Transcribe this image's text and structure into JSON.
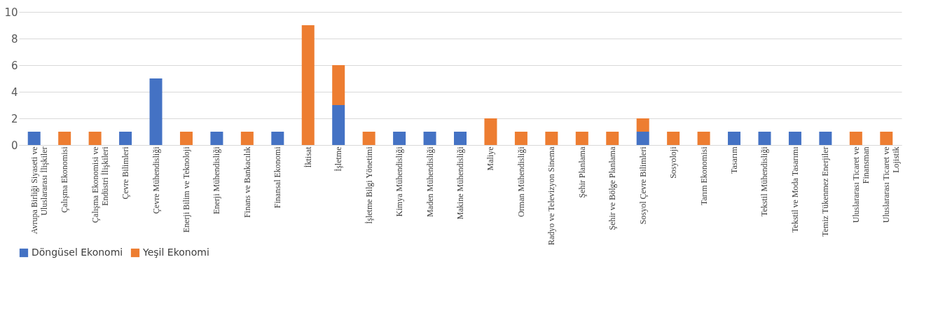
{
  "chart_data": {
    "type": "bar",
    "stacked": true,
    "categories": [
      "Avrupa Birliği Siyaseti ve Uluslararası İlişkiler",
      "Çalışma Ekonomisi",
      "Çalışma Ekonomisi ve Endüstri İlişkileri",
      "Çevre Bilimleri",
      "Çevre Mühendisliği",
      "Enerji Bilim ve Teknoloji",
      "Enerji Mühendisliği",
      "Finans ve Bankacılık",
      "Finansal Ekonomi",
      "İktisat",
      "İşletme",
      "İşletme Bilgi Yönetimi",
      "Kimya Mühendisliği",
      "Maden Mühendisliği",
      "Makine Mühendisliği",
      "Maliye",
      "Orman Mühendisliği",
      "Radyo ve Televizyon Sinema",
      "Şehir Planlama",
      "Şehir ve Bölge Planlama",
      "Sosyol Çevre Bilimleri",
      "Sosyoloji",
      "Tarım Ekonomisi",
      "Tasarım",
      "Tekstil Mühendisliği",
      "Tekstil ve Moda Tasarımı",
      "Temiz Tükenmez Enerjiler",
      "Uluslararası Ticaret ve Finansman",
      "Uluslararası Ticaret ve Lojistik"
    ],
    "series": [
      {
        "name": "Döngüsel Ekonomi",
        "color": "#4472c4",
        "values": [
          1,
          null,
          null,
          1,
          5,
          null,
          1,
          null,
          1,
          null,
          3,
          null,
          1,
          1,
          1,
          null,
          null,
          null,
          null,
          null,
          1,
          null,
          null,
          1,
          1,
          1,
          1,
          null,
          null
        ]
      },
      {
        "name": "Yeşil Ekonomi",
        "color": "#ed7d31",
        "values": [
          null,
          1,
          1,
          null,
          null,
          1,
          null,
          1,
          null,
          9,
          3,
          1,
          null,
          null,
          null,
          2,
          1,
          1,
          1,
          1,
          1,
          1,
          1,
          null,
          null,
          null,
          null,
          1,
          1
        ]
      }
    ],
    "ylim": [
      0,
      10
    ],
    "yticks": [
      0,
      2,
      4,
      6,
      8,
      10
    ],
    "grid": "y",
    "legend": "bottom"
  }
}
